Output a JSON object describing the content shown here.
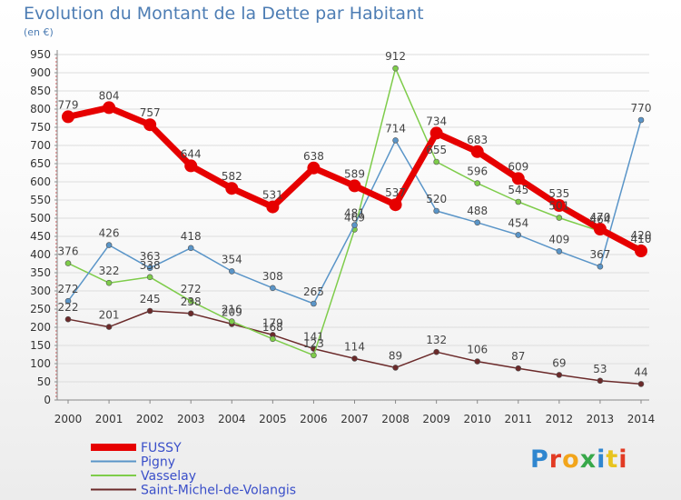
{
  "title": "Evolution du Montant de la Dette par Habitant",
  "subtitle": "(en €)",
  "logo": "Proxiti",
  "logo_colors": [
    "#2f86cf",
    "#e23b24",
    "#f2a51b",
    "#38a84a",
    "#2f86cf",
    "#e8c41e",
    "#e23b24"
  ],
  "colors": {
    "axis": "#888888",
    "grid": "#dddddd",
    "label": "#333333",
    "legend_text": "#3a4fc9"
  },
  "chart_data": {
    "type": "line",
    "title": "Evolution du Montant de la Dette par Habitant",
    "subtitle": "(en €)",
    "xlabel": "",
    "ylabel": "",
    "ylim": [
      0,
      950
    ],
    "yticks": [
      0,
      50,
      100,
      150,
      200,
      250,
      300,
      350,
      400,
      450,
      500,
      550,
      600,
      650,
      700,
      750,
      800,
      850,
      900,
      950
    ],
    "x": [
      "2000",
      "2001",
      "2002",
      "2003",
      "2004",
      "2005",
      "2006",
      "2007",
      "2008",
      "2009",
      "2010",
      "2011",
      "2012",
      "2013",
      "2014"
    ],
    "grid": true,
    "legend_position": "bottom-left",
    "series": [
      {
        "name": "FUSSY",
        "color": "#e60000",
        "values": [
          779,
          804,
          757,
          644,
          582,
          531,
          638,
          589,
          537,
          734,
          683,
          609,
          535,
          470,
          410
        ],
        "labels": [
          "779",
          "804",
          "757",
          "644",
          "582",
          "531",
          "638",
          "589",
          "537",
          "734",
          "683",
          "609",
          "535",
          "470",
          "410"
        ]
      },
      {
        "name": "Pigny",
        "color": "#5a95c8",
        "values": [
          272,
          426,
          363,
          418,
          354,
          308,
          265,
          481,
          714,
          520,
          488,
          454,
          409,
          367,
          770
        ],
        "labels": [
          "272",
          "426",
          "363",
          "418",
          "354",
          "308",
          "265",
          "481",
          "714",
          "520",
          "488",
          "454",
          "409",
          "367",
          "770"
        ]
      },
      {
        "name": "Vasselay",
        "color": "#7ecc4a",
        "values": [
          376,
          322,
          338,
          272,
          216,
          168,
          123,
          469,
          912,
          655,
          596,
          545,
          501,
          464,
          420
        ],
        "labels": [
          "376",
          "322",
          "338",
          "272",
          "216",
          "168",
          "123",
          "469",
          "912",
          "655",
          "596",
          "545",
          "501",
          "464",
          "420"
        ]
      },
      {
        "name": "Saint-Michel-de-Volangis",
        "color": "#6b2a2a",
        "values": [
          222,
          201,
          245,
          238,
          209,
          179,
          141,
          114,
          89,
          132,
          106,
          87,
          69,
          53,
          44
        ],
        "labels": [
          "222",
          "201",
          "245",
          "238",
          "209",
          "179",
          "141",
          "114",
          "89",
          "132",
          "106",
          "87",
          "69",
          "53",
          "44"
        ]
      }
    ]
  }
}
